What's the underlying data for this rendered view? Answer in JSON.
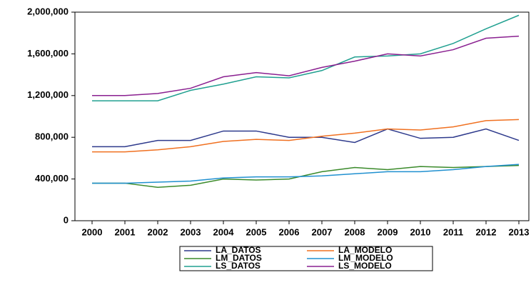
{
  "chart_data": {
    "type": "line",
    "categories": [
      "2000",
      "2001",
      "2002",
      "2003",
      "2004",
      "2005",
      "2006",
      "2007",
      "2008",
      "2009",
      "2010",
      "2011",
      "2012",
      "2013"
    ],
    "series": [
      {
        "name": "LA_DATOS",
        "color": "#2e3a8c",
        "values": [
          710000,
          710000,
          770000,
          770000,
          860000,
          860000,
          800000,
          800000,
          750000,
          880000,
          790000,
          800000,
          880000,
          770000
        ]
      },
      {
        "name": "LA_MODELO",
        "color": "#f07020",
        "values": [
          660000,
          660000,
          680000,
          710000,
          760000,
          780000,
          770000,
          810000,
          840000,
          880000,
          870000,
          900000,
          960000,
          970000
        ]
      },
      {
        "name": "LM_DATOS",
        "color": "#3a8a2a",
        "values": [
          360000,
          360000,
          320000,
          340000,
          400000,
          390000,
          400000,
          470000,
          510000,
          490000,
          520000,
          510000,
          520000,
          530000
        ]
      },
      {
        "name": "LM_MODELO",
        "color": "#2090d0",
        "values": [
          360000,
          360000,
          370000,
          380000,
          410000,
          420000,
          420000,
          430000,
          450000,
          470000,
          470000,
          490000,
          520000,
          540000
        ]
      },
      {
        "name": "LS_DATOS",
        "color": "#20a090",
        "values": [
          1150000,
          1150000,
          1150000,
          1250000,
          1310000,
          1380000,
          1370000,
          1440000,
          1570000,
          1580000,
          1600000,
          1700000,
          1840000,
          1970000
        ]
      },
      {
        "name": "LS_MODELO",
        "color": "#8a2090",
        "values": [
          1200000,
          1200000,
          1220000,
          1270000,
          1380000,
          1420000,
          1390000,
          1470000,
          1530000,
          1600000,
          1580000,
          1640000,
          1750000,
          1770000
        ]
      }
    ],
    "ylim": [
      0,
      2000000
    ],
    "yticks": [
      0,
      {
        "value": 400000,
        "label": "400,000"
      },
      {
        "value": 800000,
        "label": "800,000"
      },
      {
        "value": 1200000,
        "label": "1,200,000"
      },
      {
        "value": 1600000,
        "label": "1,600,000"
      },
      {
        "value": 2000000,
        "label": "2,000,000"
      }
    ]
  }
}
